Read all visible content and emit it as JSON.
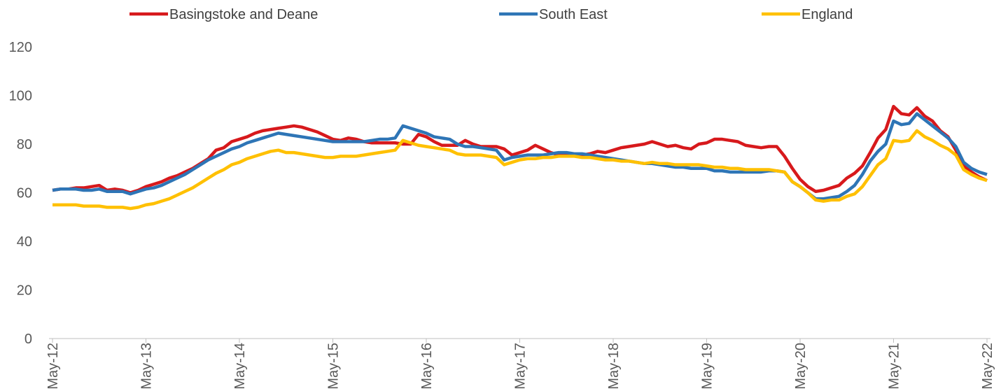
{
  "chart_data": {
    "type": "line",
    "categories": [
      "May-12",
      null,
      null,
      null,
      null,
      null,
      null,
      null,
      null,
      null,
      null,
      null,
      "May-13",
      null,
      null,
      null,
      null,
      null,
      null,
      null,
      null,
      null,
      null,
      null,
      "May-14",
      null,
      null,
      null,
      null,
      null,
      null,
      null,
      null,
      null,
      null,
      null,
      "May-15",
      null,
      null,
      null,
      null,
      null,
      null,
      null,
      null,
      null,
      null,
      null,
      "May-16",
      null,
      null,
      null,
      null,
      null,
      null,
      null,
      null,
      null,
      null,
      null,
      "May-17",
      null,
      null,
      null,
      null,
      null,
      null,
      null,
      null,
      null,
      null,
      null,
      "May-18",
      null,
      null,
      null,
      null,
      null,
      null,
      null,
      null,
      null,
      null,
      null,
      "May-19",
      null,
      null,
      null,
      null,
      null,
      null,
      null,
      null,
      null,
      null,
      null,
      "May-20",
      null,
      null,
      null,
      null,
      null,
      null,
      null,
      null,
      null,
      null,
      null,
      "May-21",
      null,
      null,
      null,
      null,
      null,
      null,
      null,
      null,
      null,
      null,
      null,
      "May-22"
    ],
    "series": [
      {
        "name": "Basingstoke and Deane",
        "color": "#d7191c",
        "values": [
          61,
          61.5,
          61.5,
          62,
          62,
          62.5,
          63,
          61,
          61.5,
          61,
          60,
          61,
          62.5,
          63.5,
          64.5,
          66,
          67,
          68.5,
          70,
          72,
          74,
          77.5,
          78.5,
          81,
          82,
          83,
          84.5,
          85.5,
          86,
          86.5,
          87,
          87.5,
          87,
          86,
          85,
          83.5,
          82,
          81.5,
          82.5,
          82,
          81,
          80.5,
          80.5,
          80.5,
          80.5,
          80,
          80,
          84,
          83,
          81,
          79.5,
          79.5,
          79.5,
          81.5,
          80,
          79,
          79,
          79,
          78,
          75.5,
          76.5,
          77.5,
          79.5,
          78,
          76.5,
          75.5,
          76,
          75.5,
          75.5,
          76,
          77,
          76.5,
          77.5,
          78.5,
          79,
          79.5,
          80,
          81,
          80,
          79,
          79.5,
          78.5,
          78,
          80,
          80.5,
          82,
          82,
          81.5,
          81,
          79.5,
          79,
          78.5,
          79,
          79,
          75,
          70,
          65.5,
          62.5,
          60.5,
          61,
          62,
          63,
          66,
          68,
          71,
          76.5,
          82.5,
          86,
          95.5,
          92.5,
          92,
          95,
          91.5,
          89.5,
          85.5,
          83,
          77.5,
          71,
          68.5,
          66.5,
          65
        ]
      },
      {
        "name": "South East",
        "color": "#2e75b6",
        "values": [
          61,
          61.5,
          61.5,
          61.5,
          61,
          61,
          61.5,
          60.5,
          60.5,
          60.5,
          59.5,
          60.5,
          61.5,
          62,
          63,
          64.5,
          66,
          67.5,
          69.5,
          71.5,
          73.5,
          75,
          76.5,
          78,
          79,
          80.5,
          81.5,
          82.5,
          83.5,
          84.5,
          84,
          83.5,
          83,
          82.5,
          82,
          81.5,
          81,
          81,
          81,
          81,
          81,
          81.5,
          82,
          82,
          82.5,
          87.5,
          86.5,
          85.5,
          84.5,
          83,
          82.5,
          82,
          80,
          79,
          79,
          78.5,
          78,
          77.5,
          73.5,
          74.5,
          75,
          75.5,
          75.5,
          75.5,
          76,
          76.5,
          76.5,
          76,
          76,
          75.5,
          75,
          74.5,
          74,
          73.5,
          73,
          72.5,
          72,
          72,
          71.5,
          71,
          70.5,
          70.5,
          70,
          70,
          70,
          69,
          69,
          68.5,
          68.5,
          68.5,
          68.5,
          68.5,
          69,
          69,
          68.5,
          64.5,
          62.5,
          60,
          57.5,
          57.5,
          58,
          58.5,
          60.5,
          63,
          67.5,
          73,
          77,
          80,
          89.5,
          88,
          88.5,
          92.5,
          90,
          87.5,
          85,
          82.5,
          79,
          72.5,
          70,
          68.5,
          67.5
        ]
      },
      {
        "name": "England",
        "color": "#ffc000",
        "values": [
          55,
          55,
          55,
          55,
          54.5,
          54.5,
          54.5,
          54,
          54,
          54,
          53.5,
          54,
          55,
          55.5,
          56.5,
          57.5,
          59,
          60.5,
          62,
          64,
          66,
          68,
          69.5,
          71.5,
          72.5,
          74,
          75,
          76,
          77,
          77.5,
          76.5,
          76.5,
          76,
          75.5,
          75,
          74.5,
          74.5,
          75,
          75,
          75,
          75.5,
          76,
          76.5,
          77,
          77.5,
          81.5,
          80.5,
          79.5,
          79,
          78.5,
          78,
          77.5,
          76,
          75.5,
          75.5,
          75.5,
          75,
          74.5,
          71.5,
          72.5,
          73.5,
          74,
          74,
          74.5,
          74.5,
          75,
          75,
          75,
          74.5,
          74.5,
          74,
          73.5,
          73.5,
          73,
          73,
          72.5,
          72,
          72.5,
          72,
          72,
          71.5,
          71.5,
          71.5,
          71.5,
          71,
          70.5,
          70.5,
          70,
          70,
          69.5,
          69.5,
          69.5,
          69.5,
          69,
          68.5,
          64.5,
          62.5,
          60,
          57,
          56.5,
          57,
          57,
          58.5,
          59.5,
          62.5,
          67,
          71.5,
          74,
          81.5,
          81,
          81.5,
          85.5,
          83,
          81.5,
          79.5,
          78,
          75.5,
          69.5,
          67.5,
          66,
          65
        ]
      }
    ],
    "ylim": [
      0,
      120
    ],
    "yticks": [
      0,
      20,
      40,
      60,
      80,
      100,
      120
    ],
    "grid": false,
    "legend": "top"
  }
}
